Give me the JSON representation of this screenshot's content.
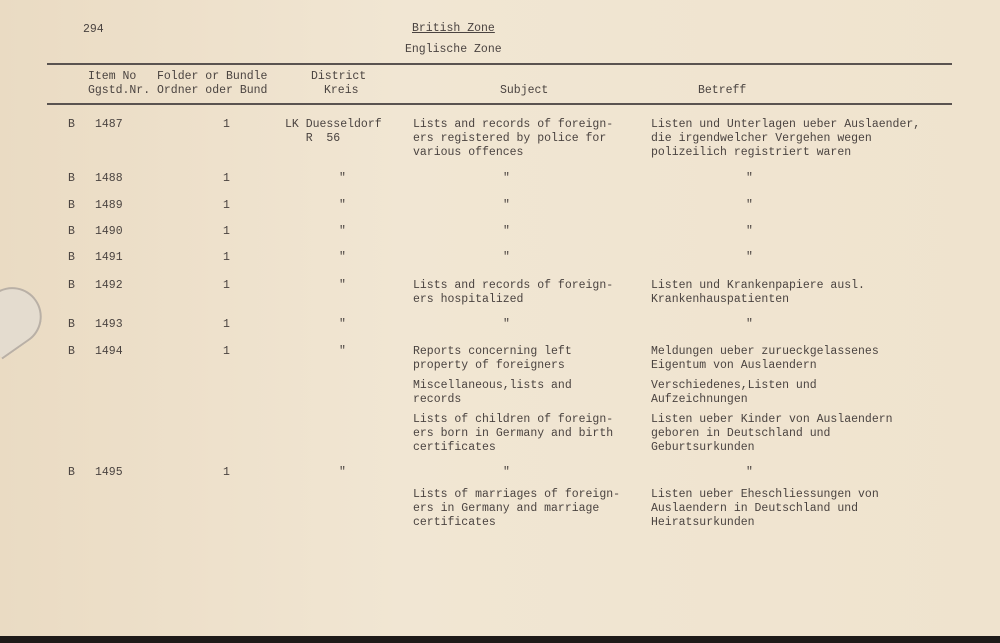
{
  "page_number": "294",
  "title": "British Zone",
  "subtitle": "Englische Zone",
  "headers": {
    "item_1": "Item No",
    "item_2": "Ggstd.Nr.",
    "folder_1": "Folder or Bundle",
    "folder_2": "Ordner oder Bund",
    "district_1": "District",
    "district_2": "Kreis",
    "subject": "Subject",
    "betreff": "Betreff"
  },
  "rows": [
    {
      "prefix": "B",
      "item": "1487",
      "folder": "1",
      "district": "LK Duesseldorf\n   R  56",
      "subject": "Lists and records of foreign-\ners registered by police for\nvarious offences",
      "betreff": "Listen und Unterlagen ueber Auslaender,\ndie irgendwelcher Vergehen wegen\npolizeilich registriert waren"
    },
    {
      "prefix": "B",
      "item": "1488",
      "folder": "1",
      "district": "\"",
      "subject": "\"",
      "betreff": "\""
    },
    {
      "prefix": "B",
      "item": "1489",
      "folder": "1",
      "district": "\"",
      "subject": "\"",
      "betreff": "\""
    },
    {
      "prefix": "B",
      "item": "1490",
      "folder": "1",
      "district": "\"",
      "subject": "\"",
      "betreff": "\""
    },
    {
      "prefix": "B",
      "item": "1491",
      "folder": "1",
      "district": "\"",
      "subject": "\"",
      "betreff": "\""
    },
    {
      "prefix": "B",
      "item": "1492",
      "folder": "1",
      "district": "\"",
      "subject": "Lists and records of foreign-\ners hospitalized",
      "betreff": "Listen und Krankenpapiere ausl.\nKrankenhauspatienten"
    },
    {
      "prefix": "B",
      "item": "1493",
      "folder": "1",
      "district": "\"",
      "subject": "\"",
      "betreff": "\""
    },
    {
      "prefix": "B",
      "item": "1494",
      "folder": "1",
      "district": "\"",
      "subject": "Reports concerning left\nproperty of foreigners",
      "betreff": "Meldungen ueber zurueckgelassenes\nEigentum von Auslaendern"
    },
    {
      "subject": "Miscellaneous,lists and\nrecords",
      "betreff": "Verschiedenes,Listen und\nAufzeichnungen"
    },
    {
      "subject": "Lists of children of foreign-\ners born in Germany and birth\ncertificates",
      "betreff": "Listen ueber Kinder von Auslaendern\ngeboren in Deutschland und\nGeburtsurkunden"
    },
    {
      "prefix": "B",
      "item": "1495",
      "folder": "1",
      "district": "\"",
      "subject": "\"",
      "betreff": "\""
    },
    {
      "subject": "Lists of marriages of foreign-\ners in Germany and marriage\ncertificates",
      "betreff": "Listen ueber Eheschliessungen von\nAuslaendern in Deutschland und\nHeiratsurkunden"
    }
  ]
}
